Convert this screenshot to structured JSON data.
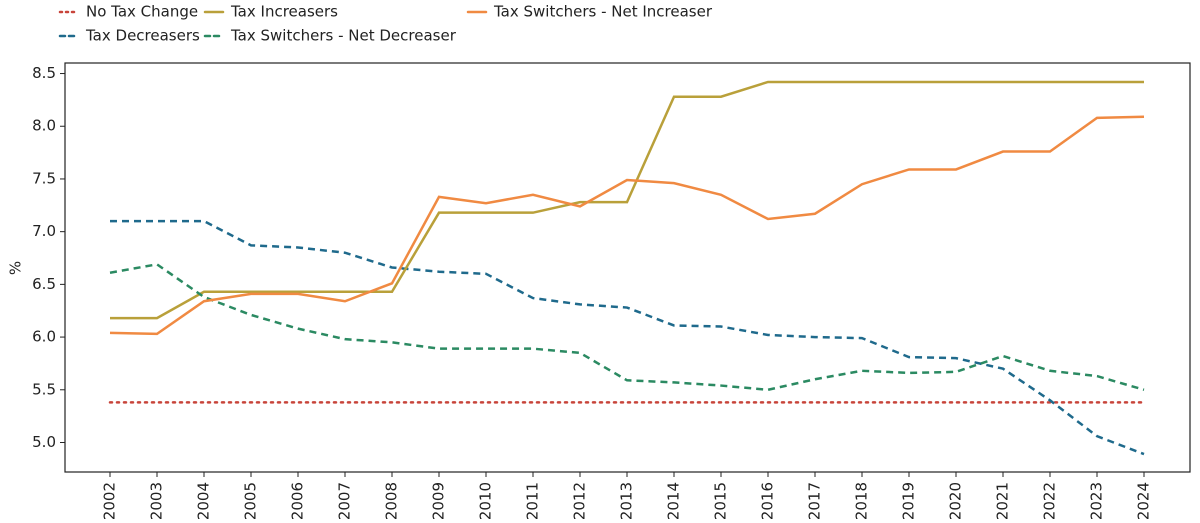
{
  "chart_data": {
    "type": "line",
    "ylabel": "%",
    "categories": [
      "2002",
      "2003",
      "2004",
      "2005",
      "2006",
      "2007",
      "2008",
      "2009",
      "2010",
      "2011",
      "2012",
      "2013",
      "2014",
      "2015",
      "2016",
      "2017",
      "2018",
      "2019",
      "2020",
      "2021",
      "2022",
      "2023",
      "2024"
    ],
    "series": [
      {
        "name": "No Tax Change",
        "color": "#c8443a",
        "linestyle": "dotted",
        "values": [
          5.38,
          5.38,
          5.38,
          5.38,
          5.38,
          5.38,
          5.38,
          5.38,
          5.38,
          5.38,
          5.38,
          5.38,
          5.38,
          5.38,
          5.38,
          5.38,
          5.38,
          5.38,
          5.38,
          5.38,
          5.38,
          5.38,
          5.38
        ]
      },
      {
        "name": "Tax Decreasers",
        "color": "#1f6a8c",
        "linestyle": "dashed",
        "values": [
          7.1,
          7.1,
          7.1,
          6.87,
          6.85,
          6.8,
          6.66,
          6.62,
          6.6,
          6.37,
          6.31,
          6.28,
          6.11,
          6.1,
          6.02,
          6.0,
          5.99,
          5.81,
          5.8,
          5.7,
          5.4,
          5.06,
          4.89
        ]
      },
      {
        "name": "Tax Increasers",
        "color": "#b9a03a",
        "linestyle": "solid",
        "values": [
          6.18,
          6.18,
          6.43,
          6.43,
          6.43,
          6.43,
          6.43,
          7.18,
          7.18,
          7.18,
          7.28,
          7.28,
          8.28,
          8.28,
          8.42,
          8.42,
          8.42,
          8.42,
          8.42,
          8.42,
          8.42,
          8.42,
          8.42
        ]
      },
      {
        "name": "Tax Switchers - Net Decreaser",
        "color": "#2b8a62",
        "linestyle": "dashed",
        "values": [
          6.61,
          6.69,
          6.38,
          6.21,
          6.08,
          5.98,
          5.95,
          5.89,
          5.89,
          5.89,
          5.85,
          5.59,
          5.57,
          5.54,
          5.5,
          5.6,
          5.68,
          5.66,
          5.67,
          5.82,
          5.68,
          5.63,
          5.5
        ]
      },
      {
        "name": "Tax Switchers - Net Increaser",
        "color": "#f08a42",
        "linestyle": "solid",
        "values": [
          6.04,
          6.03,
          6.34,
          6.41,
          6.41,
          6.34,
          6.51,
          7.33,
          7.27,
          7.35,
          7.24,
          7.49,
          7.46,
          7.35,
          7.12,
          7.17,
          7.45,
          7.59,
          7.59,
          7.76,
          7.76,
          8.08,
          8.09
        ]
      }
    ],
    "ylim": [
      4.72,
      8.6
    ],
    "yticks": [
      {
        "value": 5,
        "label": "5.0"
      },
      5.5,
      {
        "value": 6,
        "label": "6.0"
      },
      6.5,
      {
        "value": 7,
        "label": "7.0"
      },
      7.5,
      {
        "value": 8,
        "label": "8.0"
      },
      8.5
    ],
    "grid": false,
    "legend": "top"
  }
}
